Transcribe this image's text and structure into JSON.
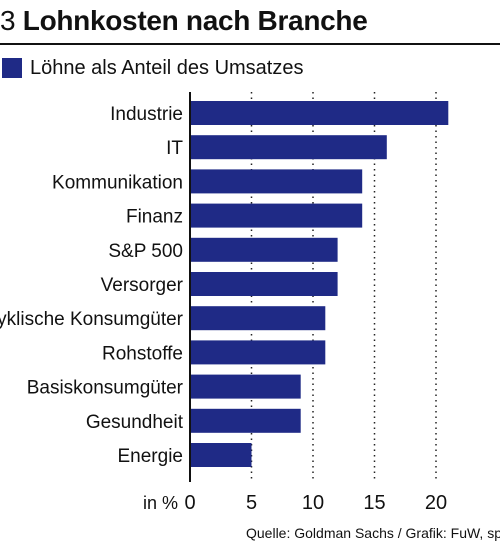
{
  "header": {
    "number": "3",
    "title": "Lohnkosten nach Branche"
  },
  "legend": {
    "label": "Löhne als Anteil des Umsatzes",
    "color": "#1f2a86"
  },
  "chart_data": {
    "type": "bar",
    "orientation": "horizontal",
    "categories": [
      "Industrie",
      "IT",
      "Kommunikation",
      "Finanz",
      "S&P 500",
      "Versorger",
      "Zyklische Konsumgüter",
      "Rohstoffe",
      "Basiskonsumgüter",
      "Gesundheit",
      "Energie"
    ],
    "series": [
      {
        "name": "Löhne als Anteil des Umsatzes",
        "values": [
          21,
          16,
          14,
          14,
          12,
          12,
          11,
          11,
          9,
          9,
          5
        ]
      }
    ],
    "xlim": [
      0,
      25
    ],
    "xticks": [
      "0",
      "5",
      "10",
      "15",
      "20"
    ],
    "xunit": "in %",
    "grid": "vertical dotted",
    "bar_color": "#1f2a86"
  },
  "footer": {
    "source": "Quelle: Goldman Sachs / Grafik: FuW, sp"
  }
}
